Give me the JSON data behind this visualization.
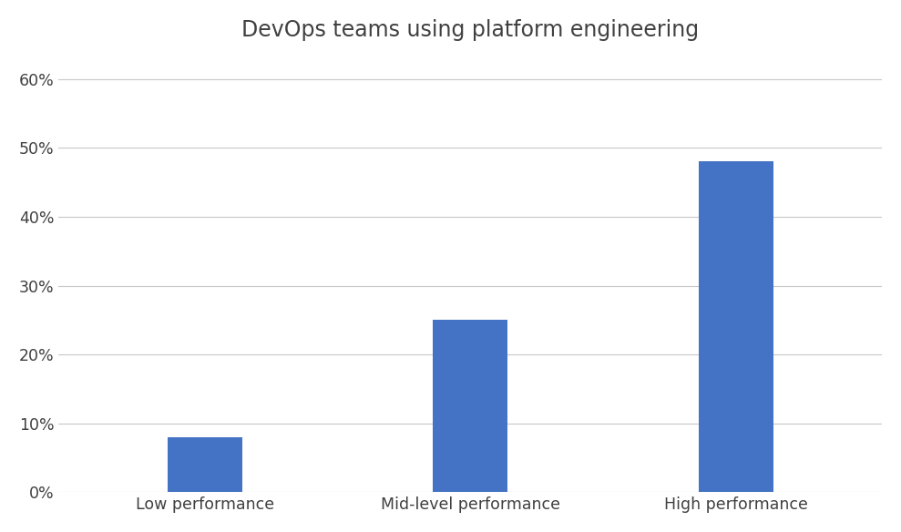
{
  "title": "DevOps teams using platform engineering",
  "categories": [
    "Low performance",
    "Mid-level performance",
    "High performance"
  ],
  "values": [
    0.08,
    0.25,
    0.48
  ],
  "bar_color": "#4472C4",
  "bar_width": 0.28,
  "ylim": [
    0,
    0.64
  ],
  "yticks": [
    0.0,
    0.1,
    0.2,
    0.3,
    0.4,
    0.5,
    0.6
  ],
  "ytick_labels": [
    "0%",
    "10%",
    "20%",
    "30%",
    "40%",
    "50%",
    "60%"
  ],
  "background_color": "#ffffff",
  "grid_color": "#c8c8c8",
  "title_fontsize": 17,
  "tick_fontsize": 12.5,
  "title_color": "#404040",
  "tick_color": "#404040",
  "xlim_left": -0.55,
  "xlim_right": 2.55
}
